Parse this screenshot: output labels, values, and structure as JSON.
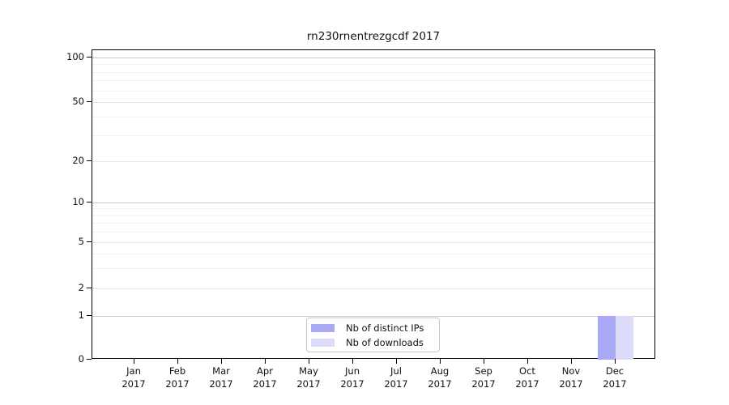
{
  "chart_data": {
    "type": "bar",
    "title": "rn230rnentrezgcdf 2017",
    "categories": [
      "Jan 2017",
      "Feb 2017",
      "Mar 2017",
      "Apr 2017",
      "May 2017",
      "Jun 2017",
      "Jul 2017",
      "Aug 2017",
      "Sep 2017",
      "Oct 2017",
      "Nov 2017",
      "Dec 2017"
    ],
    "series": [
      {
        "name": "Nb of distinct IPs",
        "color": "#a8a8f5",
        "values": [
          0,
          0,
          0,
          0,
          0,
          0,
          0,
          0,
          0,
          0,
          0,
          1
        ]
      },
      {
        "name": "Nb of downloads",
        "color": "#dcdcfa",
        "values": [
          0,
          0,
          0,
          0,
          0,
          0,
          0,
          0,
          0,
          0,
          0,
          1
        ]
      }
    ],
    "yaxis": {
      "scale": "log-like",
      "tick_labels": [
        "100",
        "50",
        "20",
        "10",
        "5",
        "2",
        "1",
        "0"
      ],
      "tick_values": [
        100,
        50,
        20,
        10,
        5,
        2,
        1,
        0
      ],
      "decade_values": [
        100,
        10,
        1
      ],
      "minor_values": [
        90,
        80,
        70,
        60,
        40,
        30,
        9,
        8,
        7,
        6,
        4,
        3
      ]
    },
    "legend": {
      "position": "lower center"
    },
    "grid": true,
    "background": "#ffffff"
  }
}
